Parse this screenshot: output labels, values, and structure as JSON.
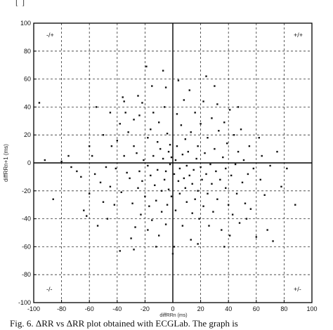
{
  "header_fragment": "[  ]",
  "caption": "Fig. 6.  ΔRR  vs  ΔRR  plot obtained with ECGLab. The graph is",
  "chart_data": {
    "type": "scatter",
    "title": "",
    "xlabel": "diffRRn (ms)",
    "ylabel": "diffRRn+1 (ms)",
    "xlim": [
      -100,
      100
    ],
    "ylim": [
      -100,
      100
    ],
    "xticks": [
      -100,
      -80,
      -60,
      -40,
      -20,
      0,
      20,
      40,
      60,
      80,
      100
    ],
    "yticks": [
      100,
      80,
      60,
      40,
      20,
      0,
      -20,
      -40,
      -60,
      -80,
      -100
    ],
    "grid": true,
    "quadrant_labels": [
      {
        "text": "-/+",
        "corner": "top-left"
      },
      {
        "text": "+/+",
        "corner": "top-right"
      },
      {
        "text": "-/-",
        "corner": "bottom-left"
      },
      {
        "text": "+/-",
        "corner": "bottom-right"
      }
    ],
    "points": [
      [
        -96,
        43
      ],
      [
        -92,
        2
      ],
      [
        -86,
        -26
      ],
      [
        -80,
        1
      ],
      [
        -75,
        5
      ],
      [
        -73,
        -3
      ],
      [
        -69,
        -6
      ],
      [
        -66,
        -10
      ],
      [
        -64,
        -34
      ],
      [
        -62,
        -38
      ],
      [
        -60,
        -22
      ],
      [
        -58,
        5
      ],
      [
        -56,
        -8
      ],
      [
        -54,
        -45
      ],
      [
        -52,
        -14
      ],
      [
        -50,
        -28
      ],
      [
        -48,
        -3
      ],
      [
        -47,
        -40
      ],
      [
        -45,
        -17
      ],
      [
        -44,
        12
      ],
      [
        -42,
        -30
      ],
      [
        -41,
        -4
      ],
      [
        -40,
        16
      ],
      [
        -38,
        28
      ],
      [
        -37,
        -21
      ],
      [
        -36,
        47
      ],
      [
        -35,
        44
      ],
      [
        -34,
        36
      ],
      [
        -33,
        -7
      ],
      [
        -32,
        22
      ],
      [
        -31,
        -11
      ],
      [
        -30,
        -54
      ],
      [
        -29,
        -29
      ],
      [
        -28,
        31
      ],
      [
        -28,
        12
      ],
      [
        -27,
        -46
      ],
      [
        -26,
        7
      ],
      [
        -25,
        -18
      ],
      [
        -24,
        34
      ],
      [
        -24,
        -6
      ],
      [
        -23,
        -37
      ],
      [
        -22,
        43
      ],
      [
        -22,
        -13
      ],
      [
        -21,
        2
      ],
      [
        -20,
        -24
      ],
      [
        -19,
        69
      ],
      [
        -18,
        -2
      ],
      [
        -18,
        18
      ],
      [
        -17,
        -31
      ],
      [
        -16,
        24
      ],
      [
        -16,
        -9
      ],
      [
        -15,
        -41
      ],
      [
        -14,
        5
      ],
      [
        -14,
        36
      ],
      [
        -13,
        -16
      ],
      [
        -12,
        -27
      ],
      [
        -11,
        -5
      ],
      [
        -11,
        15
      ],
      [
        -10,
        -52
      ],
      [
        -10,
        29
      ],
      [
        -9,
        10
      ],
      [
        -8,
        -20
      ],
      [
        -8,
        -35
      ],
      [
        -7,
        66
      ],
      [
        -7,
        3
      ],
      [
        -6,
        -12
      ],
      [
        -6,
        40
      ],
      [
        -5,
        -6
      ],
      [
        -5,
        -44
      ],
      [
        -4,
        21
      ],
      [
        -4,
        -30
      ],
      [
        -3,
        8
      ],
      [
        -3,
        -19
      ],
      [
        -2,
        -1
      ],
      [
        -2,
        13
      ],
      [
        -1,
        -24
      ],
      [
        -1,
        4
      ],
      [
        0,
        -65
      ],
      [
        1,
        -60
      ],
      [
        1,
        -8
      ],
      [
        2,
        2
      ],
      [
        2,
        -34
      ],
      [
        3,
        12
      ],
      [
        4,
        59
      ],
      [
        4,
        -13
      ],
      [
        5,
        -22
      ],
      [
        5,
        -4
      ],
      [
        6,
        27
      ],
      [
        7,
        -45
      ],
      [
        7,
        6
      ],
      [
        8,
        -11
      ],
      [
        9,
        -18
      ],
      [
        9,
        17
      ],
      [
        10,
        -2
      ],
      [
        10,
        -28
      ],
      [
        11,
        8
      ],
      [
        12,
        -9
      ],
      [
        12,
        52
      ],
      [
        13,
        22
      ],
      [
        14,
        -15
      ],
      [
        14,
        -36
      ],
      [
        15,
        -5
      ],
      [
        16,
        36
      ],
      [
        16,
        -26
      ],
      [
        17,
        3
      ],
      [
        18,
        -20
      ],
      [
        18,
        12
      ],
      [
        19,
        -40
      ],
      [
        20,
        -3
      ],
      [
        20,
        28
      ],
      [
        21,
        -12
      ],
      [
        22,
        -31
      ],
      [
        22,
        44
      ],
      [
        23,
        7
      ],
      [
        24,
        -8
      ],
      [
        25,
        -22
      ],
      [
        25,
        18
      ],
      [
        26,
        -45
      ],
      [
        27,
        -1
      ],
      [
        28,
        32
      ],
      [
        28,
        -15
      ],
      [
        29,
        -35
      ],
      [
        30,
        10
      ],
      [
        31,
        -6
      ],
      [
        32,
        42
      ],
      [
        32,
        -26
      ],
      [
        33,
        23
      ],
      [
        34,
        -12
      ],
      [
        35,
        -48
      ],
      [
        36,
        4
      ],
      [
        37,
        29
      ],
      [
        38,
        -18
      ],
      [
        38,
        -4
      ],
      [
        39,
        14
      ],
      [
        40,
        -30
      ],
      [
        41,
        38
      ],
      [
        42,
        -9
      ],
      [
        43,
        -37
      ],
      [
        44,
        20
      ],
      [
        45,
        -1
      ],
      [
        46,
        -22
      ],
      [
        47,
        8
      ],
      [
        48,
        -43
      ],
      [
        49,
        24
      ],
      [
        50,
        -14
      ],
      [
        51,
        2
      ],
      [
        52,
        -29
      ],
      [
        54,
        -8
      ],
      [
        55,
        12
      ],
      [
        56,
        -33
      ],
      [
        58,
        -4
      ],
      [
        60,
        -53
      ],
      [
        62,
        18
      ],
      [
        63,
        -12
      ],
      [
        64,
        5
      ],
      [
        66,
        -23
      ],
      [
        68,
        -48
      ],
      [
        70,
        -2
      ],
      [
        72,
        -56
      ],
      [
        75,
        8
      ],
      [
        78,
        -17
      ],
      [
        82,
        -4
      ],
      [
        88,
        -30
      ],
      [
        -38,
        -63
      ],
      [
        -12,
        -60
      ],
      [
        -25,
        48
      ],
      [
        -15,
        55
      ],
      [
        8,
        45
      ],
      [
        18,
        -58
      ],
      [
        30,
        55
      ],
      [
        -50,
        20
      ],
      [
        -55,
        40
      ],
      [
        -35,
        5
      ],
      [
        -18,
        -48
      ],
      [
        3,
        35
      ],
      [
        13,
        -55
      ],
      [
        24,
        62
      ],
      [
        37,
        -60
      ],
      [
        -28,
        -62
      ],
      [
        -5,
        54
      ],
      [
        47,
        40
      ],
      [
        -45,
        36
      ],
      [
        -60,
        12
      ],
      [
        53,
        -40
      ],
      [
        41,
        -52
      ]
    ]
  }
}
